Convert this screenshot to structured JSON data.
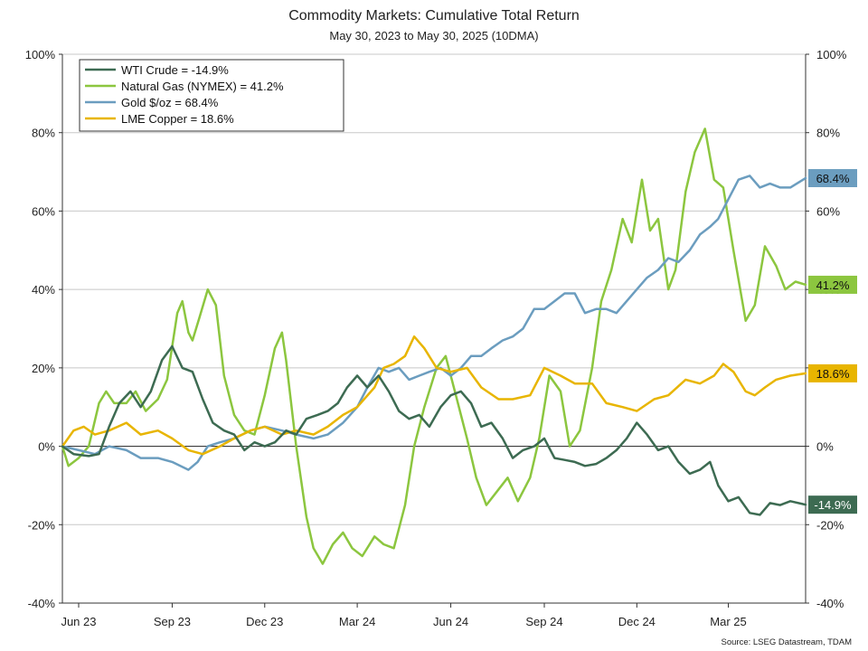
{
  "chart_data": {
    "type": "line",
    "title": "Commodity Markets: Cumulative Total Return",
    "subtitle": "May 30, 2023 to May 30, 2025 (10DMA)",
    "source": "Source: LSEG Datastream, TDAM",
    "x_start": "2023-05-30",
    "x_end": "2025-05-30",
    "x_ticks": [
      {
        "date": "2023-06-15",
        "label": "Jun 23"
      },
      {
        "date": "2023-09-15",
        "label": "Sep 23"
      },
      {
        "date": "2023-12-15",
        "label": "Dec 23"
      },
      {
        "date": "2024-03-15",
        "label": "Mar 24"
      },
      {
        "date": "2024-06-15",
        "label": "Jun 24"
      },
      {
        "date": "2024-09-15",
        "label": "Sep 24"
      },
      {
        "date": "2024-12-15",
        "label": "Dec 24"
      },
      {
        "date": "2025-03-15",
        "label": "Mar 25"
      }
    ],
    "ylim": [
      -40,
      100
    ],
    "y_ticks": [
      -40,
      -20,
      0,
      20,
      40,
      60,
      80,
      100
    ],
    "y_tick_labels": [
      "-40%",
      "-20%",
      "0%",
      "20%",
      "40%",
      "60%",
      "80%",
      "100%"
    ],
    "grid": true,
    "legend_position": "top-left",
    "series": [
      {
        "name": "WTI Crude",
        "legend": "WTI Crude = -14.9%",
        "end_label": "-14.9%",
        "color": "#3d6b52",
        "points": [
          [
            "2023-05-30",
            0
          ],
          [
            "2023-06-10",
            -2
          ],
          [
            "2023-06-25",
            -2.5
          ],
          [
            "2023-07-05",
            -2
          ],
          [
            "2023-07-15",
            5
          ],
          [
            "2023-07-25",
            11
          ],
          [
            "2023-08-05",
            14
          ],
          [
            "2023-08-15",
            10
          ],
          [
            "2023-08-25",
            14
          ],
          [
            "2023-09-05",
            22
          ],
          [
            "2023-09-15",
            25.5
          ],
          [
            "2023-09-25",
            20
          ],
          [
            "2023-10-05",
            19
          ],
          [
            "2023-10-15",
            12
          ],
          [
            "2023-10-25",
            6
          ],
          [
            "2023-11-05",
            4
          ],
          [
            "2023-11-15",
            3
          ],
          [
            "2023-11-25",
            -1
          ],
          [
            "2023-12-05",
            1
          ],
          [
            "2023-12-15",
            0
          ],
          [
            "2023-12-25",
            1
          ],
          [
            "2024-01-05",
            4
          ],
          [
            "2024-01-15",
            3
          ],
          [
            "2024-01-25",
            7
          ],
          [
            "2024-02-05",
            8
          ],
          [
            "2024-02-15",
            9
          ],
          [
            "2024-02-25",
            11
          ],
          [
            "2024-03-05",
            15
          ],
          [
            "2024-03-15",
            18
          ],
          [
            "2024-03-25",
            15
          ],
          [
            "2024-04-05",
            18
          ],
          [
            "2024-04-15",
            14
          ],
          [
            "2024-04-25",
            9
          ],
          [
            "2024-05-05",
            7
          ],
          [
            "2024-05-15",
            8
          ],
          [
            "2024-05-25",
            5
          ],
          [
            "2024-06-05",
            10
          ],
          [
            "2024-06-15",
            13
          ],
          [
            "2024-06-25",
            14
          ],
          [
            "2024-07-05",
            11
          ],
          [
            "2024-07-15",
            5
          ],
          [
            "2024-07-25",
            6
          ],
          [
            "2024-08-05",
            2
          ],
          [
            "2024-08-15",
            -3
          ],
          [
            "2024-08-25",
            -1
          ],
          [
            "2024-09-05",
            0
          ],
          [
            "2024-09-15",
            2
          ],
          [
            "2024-09-25",
            -3
          ],
          [
            "2024-10-05",
            -3.5
          ],
          [
            "2024-10-15",
            -4
          ],
          [
            "2024-10-25",
            -5
          ],
          [
            "2024-11-05",
            -4.5
          ],
          [
            "2024-11-15",
            -3
          ],
          [
            "2024-11-25",
            -1
          ],
          [
            "2024-12-05",
            2
          ],
          [
            "2024-12-15",
            6
          ],
          [
            "2024-12-25",
            3
          ],
          [
            "2025-01-05",
            -1
          ],
          [
            "2025-01-15",
            0
          ],
          [
            "2025-01-25",
            -4
          ],
          [
            "2025-02-05",
            -7
          ],
          [
            "2025-02-15",
            -6
          ],
          [
            "2025-02-25",
            -4
          ],
          [
            "2025-03-05",
            -10
          ],
          [
            "2025-03-15",
            -14
          ],
          [
            "2025-03-25",
            -13
          ],
          [
            "2025-04-05",
            -17
          ],
          [
            "2025-04-15",
            -17.5
          ],
          [
            "2025-04-25",
            -14.5
          ],
          [
            "2025-05-05",
            -15
          ],
          [
            "2025-05-15",
            -14
          ],
          [
            "2025-05-30",
            -14.9
          ]
        ]
      },
      {
        "name": "Natural Gas (NYMEX)",
        "legend": "Natural Gas (NYMEX) = 41.2%",
        "end_label": "41.2%",
        "color": "#8cc63f",
        "points": [
          [
            "2023-05-30",
            0
          ],
          [
            "2023-06-05",
            -5
          ],
          [
            "2023-06-15",
            -3
          ],
          [
            "2023-06-25",
            0
          ],
          [
            "2023-07-05",
            11
          ],
          [
            "2023-07-12",
            14
          ],
          [
            "2023-07-20",
            11
          ],
          [
            "2023-08-01",
            11
          ],
          [
            "2023-08-10",
            14
          ],
          [
            "2023-08-20",
            9
          ],
          [
            "2023-09-01",
            12
          ],
          [
            "2023-09-10",
            17
          ],
          [
            "2023-09-20",
            34
          ],
          [
            "2023-09-25",
            37
          ],
          [
            "2023-10-01",
            29
          ],
          [
            "2023-10-05",
            27
          ],
          [
            "2023-10-12",
            33
          ],
          [
            "2023-10-20",
            40
          ],
          [
            "2023-10-28",
            36
          ],
          [
            "2023-11-05",
            18
          ],
          [
            "2023-11-15",
            8
          ],
          [
            "2023-11-25",
            4
          ],
          [
            "2023-12-05",
            3
          ],
          [
            "2023-12-15",
            13
          ],
          [
            "2023-12-25",
            25
          ],
          [
            "2024-01-01",
            29
          ],
          [
            "2024-01-05",
            22
          ],
          [
            "2024-01-15",
            0
          ],
          [
            "2024-01-25",
            -18
          ],
          [
            "2024-02-01",
            -26
          ],
          [
            "2024-02-10",
            -30
          ],
          [
            "2024-02-20",
            -25
          ],
          [
            "2024-03-01",
            -22
          ],
          [
            "2024-03-10",
            -26
          ],
          [
            "2024-03-20",
            -28
          ],
          [
            "2024-04-01",
            -23
          ],
          [
            "2024-04-10",
            -25
          ],
          [
            "2024-04-20",
            -26
          ],
          [
            "2024-05-01",
            -15
          ],
          [
            "2024-05-10",
            0
          ],
          [
            "2024-05-20",
            10
          ],
          [
            "2024-06-01",
            20
          ],
          [
            "2024-06-10",
            23
          ],
          [
            "2024-06-20",
            13
          ],
          [
            "2024-07-01",
            2
          ],
          [
            "2024-07-10",
            -8
          ],
          [
            "2024-07-20",
            -15
          ],
          [
            "2024-08-01",
            -11
          ],
          [
            "2024-08-10",
            -8
          ],
          [
            "2024-08-20",
            -14
          ],
          [
            "2024-09-01",
            -8
          ],
          [
            "2024-09-10",
            2
          ],
          [
            "2024-09-20",
            18
          ],
          [
            "2024-10-01",
            14
          ],
          [
            "2024-10-10",
            0
          ],
          [
            "2024-10-20",
            4
          ],
          [
            "2024-11-01",
            20
          ],
          [
            "2024-11-10",
            37
          ],
          [
            "2024-11-20",
            45
          ],
          [
            "2024-12-01",
            58
          ],
          [
            "2024-12-10",
            52
          ],
          [
            "2024-12-20",
            68
          ],
          [
            "2024-12-28",
            55
          ],
          [
            "2025-01-05",
            58
          ],
          [
            "2025-01-15",
            40
          ],
          [
            "2025-01-22",
            45
          ],
          [
            "2025-02-01",
            65
          ],
          [
            "2025-02-10",
            75
          ],
          [
            "2025-02-20",
            81
          ],
          [
            "2025-03-01",
            68
          ],
          [
            "2025-03-10",
            66
          ],
          [
            "2025-03-20",
            50
          ],
          [
            "2025-04-01",
            32
          ],
          [
            "2025-04-10",
            36
          ],
          [
            "2025-04-20",
            51
          ],
          [
            "2025-05-01",
            46
          ],
          [
            "2025-05-10",
            40
          ],
          [
            "2025-05-20",
            42
          ],
          [
            "2025-05-30",
            41.2
          ]
        ]
      },
      {
        "name": "Gold $/oz",
        "legend": "Gold $/oz = 68.4%",
        "end_label": "68.4%",
        "color": "#6b9dbf",
        "points": [
          [
            "2023-05-30",
            0
          ],
          [
            "2023-06-15",
            -1
          ],
          [
            "2023-07-01",
            -2
          ],
          [
            "2023-07-15",
            0
          ],
          [
            "2023-08-01",
            -1
          ],
          [
            "2023-08-15",
            -3
          ],
          [
            "2023-09-01",
            -3
          ],
          [
            "2023-09-15",
            -4
          ],
          [
            "2023-10-01",
            -6
          ],
          [
            "2023-10-10",
            -4
          ],
          [
            "2023-10-20",
            0
          ],
          [
            "2023-11-01",
            1
          ],
          [
            "2023-11-15",
            2
          ],
          [
            "2023-12-01",
            4
          ],
          [
            "2023-12-15",
            5
          ],
          [
            "2024-01-01",
            4
          ],
          [
            "2024-01-15",
            3
          ],
          [
            "2024-02-01",
            2
          ],
          [
            "2024-02-15",
            3
          ],
          [
            "2024-03-01",
            6
          ],
          [
            "2024-03-15",
            10
          ],
          [
            "2024-03-25",
            15
          ],
          [
            "2024-04-05",
            20
          ],
          [
            "2024-04-15",
            19
          ],
          [
            "2024-04-25",
            20
          ],
          [
            "2024-05-05",
            17
          ],
          [
            "2024-05-15",
            18
          ],
          [
            "2024-05-25",
            19
          ],
          [
            "2024-06-05",
            20
          ],
          [
            "2024-06-15",
            18
          ],
          [
            "2024-06-25",
            20
          ],
          [
            "2024-07-05",
            23
          ],
          [
            "2024-07-15",
            23
          ],
          [
            "2024-07-25",
            25
          ],
          [
            "2024-08-05",
            27
          ],
          [
            "2024-08-15",
            28
          ],
          [
            "2024-08-25",
            30
          ],
          [
            "2024-09-05",
            35
          ],
          [
            "2024-09-15",
            35
          ],
          [
            "2024-09-25",
            37
          ],
          [
            "2024-10-05",
            39
          ],
          [
            "2024-10-15",
            39
          ],
          [
            "2024-10-25",
            34
          ],
          [
            "2024-11-05",
            35
          ],
          [
            "2024-11-15",
            35
          ],
          [
            "2024-11-25",
            34
          ],
          [
            "2024-12-05",
            37
          ],
          [
            "2024-12-15",
            40
          ],
          [
            "2024-12-25",
            43
          ],
          [
            "2025-01-05",
            45
          ],
          [
            "2025-01-15",
            48
          ],
          [
            "2025-01-25",
            47
          ],
          [
            "2025-02-05",
            50
          ],
          [
            "2025-02-15",
            54
          ],
          [
            "2025-02-25",
            56
          ],
          [
            "2025-03-05",
            58
          ],
          [
            "2025-03-15",
            63
          ],
          [
            "2025-03-25",
            68
          ],
          [
            "2025-04-05",
            69
          ],
          [
            "2025-04-15",
            66
          ],
          [
            "2025-04-25",
            67
          ],
          [
            "2025-05-05",
            66
          ],
          [
            "2025-05-15",
            66
          ],
          [
            "2025-05-30",
            68.4
          ]
        ]
      },
      {
        "name": "LME Copper",
        "legend": "LME Copper = 18.6%",
        "end_label": "18.6%",
        "color": "#e8b500",
        "points": [
          [
            "2023-05-30",
            0
          ],
          [
            "2023-06-10",
            4
          ],
          [
            "2023-06-20",
            5
          ],
          [
            "2023-07-01",
            3
          ],
          [
            "2023-07-15",
            4
          ],
          [
            "2023-08-01",
            6
          ],
          [
            "2023-08-15",
            3
          ],
          [
            "2023-09-01",
            4
          ],
          [
            "2023-09-15",
            2
          ],
          [
            "2023-10-01",
            -1
          ],
          [
            "2023-10-15",
            -2
          ],
          [
            "2023-11-01",
            0
          ],
          [
            "2023-11-15",
            2
          ],
          [
            "2023-12-01",
            4
          ],
          [
            "2023-12-15",
            5
          ],
          [
            "2024-01-01",
            3
          ],
          [
            "2024-01-15",
            4
          ],
          [
            "2024-02-01",
            3
          ],
          [
            "2024-02-15",
            5
          ],
          [
            "2024-03-01",
            8
          ],
          [
            "2024-03-15",
            10
          ],
          [
            "2024-04-01",
            15
          ],
          [
            "2024-04-10",
            20
          ],
          [
            "2024-04-20",
            21
          ],
          [
            "2024-05-01",
            23
          ],
          [
            "2024-05-10",
            28
          ],
          [
            "2024-05-20",
            25
          ],
          [
            "2024-06-01",
            20
          ],
          [
            "2024-06-15",
            19
          ],
          [
            "2024-07-01",
            20
          ],
          [
            "2024-07-15",
            15
          ],
          [
            "2024-08-01",
            12
          ],
          [
            "2024-08-15",
            12
          ],
          [
            "2024-09-01",
            13
          ],
          [
            "2024-09-15",
            20
          ],
          [
            "2024-10-01",
            18
          ],
          [
            "2024-10-15",
            16
          ],
          [
            "2024-11-01",
            16
          ],
          [
            "2024-11-15",
            11
          ],
          [
            "2024-12-01",
            10
          ],
          [
            "2024-12-15",
            9
          ],
          [
            "2025-01-01",
            12
          ],
          [
            "2025-01-15",
            13
          ],
          [
            "2025-02-01",
            17
          ],
          [
            "2025-02-15",
            16
          ],
          [
            "2025-03-01",
            18
          ],
          [
            "2025-03-10",
            21
          ],
          [
            "2025-03-20",
            19
          ],
          [
            "2025-04-01",
            14
          ],
          [
            "2025-04-10",
            13
          ],
          [
            "2025-04-20",
            15
          ],
          [
            "2025-05-01",
            17
          ],
          [
            "2025-05-15",
            18
          ],
          [
            "2025-05-30",
            18.6
          ]
        ]
      }
    ]
  }
}
